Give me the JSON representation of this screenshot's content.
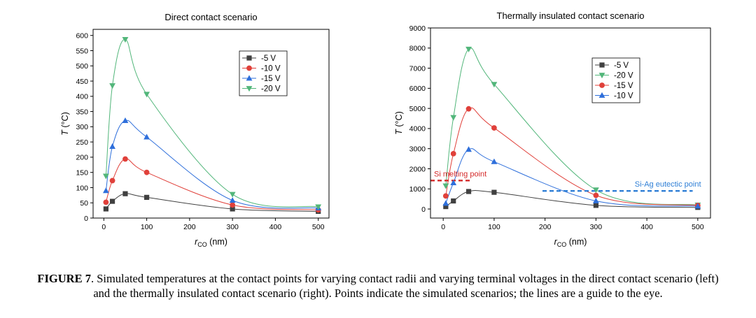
{
  "chart_data": [
    {
      "type": "scatter",
      "title": "Direct contact scenario",
      "xlabel_main": "r",
      "xlabel_sub": "CO",
      "xlabel_unit": "(nm)",
      "ylabel_main": "T",
      "ylabel_unit": "(°C)",
      "xlim": [
        -25,
        525
      ],
      "ylim": [
        0,
        620
      ],
      "xticks": [
        0,
        100,
        200,
        300,
        400,
        500
      ],
      "yticks": [
        0,
        50,
        100,
        150,
        200,
        250,
        300,
        350,
        400,
        450,
        500,
        550,
        600
      ],
      "legend_position": "top-right",
      "x": [
        5,
        20,
        50,
        100,
        300,
        500
      ],
      "series": [
        {
          "name": "-5 V",
          "color": "#404040",
          "marker": "square",
          "values": [
            30,
            55,
            80,
            68,
            30,
            22
          ]
        },
        {
          "name": "-10 V",
          "color": "#e0403a",
          "marker": "circle",
          "values": [
            52,
            123,
            194,
            150,
            43,
            27
          ]
        },
        {
          "name": "-15 V",
          "color": "#2e6fdb",
          "marker": "triangle-up",
          "values": [
            90,
            235,
            320,
            266,
            58,
            33
          ]
        },
        {
          "name": "-20 V",
          "color": "#52b67a",
          "marker": "triangle-down",
          "values": [
            138,
            435,
            587,
            407,
            78,
            37
          ]
        }
      ]
    },
    {
      "type": "scatter",
      "title": "Thermally insulated contact scenario",
      "xlabel_main": "r",
      "xlabel_sub": "CO",
      "xlabel_unit": "(nm)",
      "ylabel_main": "T",
      "ylabel_unit": "(°C)",
      "xlim": [
        -25,
        525
      ],
      "ylim": [
        -450,
        9000
      ],
      "xticks": [
        0,
        100,
        200,
        300,
        400,
        500
      ],
      "yticks": [
        0,
        1000,
        2000,
        3000,
        4000,
        5000,
        6000,
        7000,
        8000,
        9000
      ],
      "legend_position": "top-right",
      "x": [
        5,
        20,
        50,
        100,
        300,
        500
      ],
      "series": [
        {
          "name": "-5 V",
          "color": "#404040",
          "marker": "square",
          "values": [
            120,
            400,
            870,
            830,
            180,
            80
          ]
        },
        {
          "name": "-20 V",
          "color": "#52b67a",
          "marker": "triangle-down",
          "values": [
            1150,
            4550,
            7950,
            6200,
            950,
            200
          ]
        },
        {
          "name": "-15 V",
          "color": "#e0403a",
          "marker": "circle",
          "values": [
            650,
            2750,
            4980,
            4030,
            680,
            180
          ]
        },
        {
          "name": "-10 V",
          "color": "#2e6fdb",
          "marker": "triangle-up",
          "values": [
            280,
            1300,
            2960,
            2350,
            400,
            140
          ]
        }
      ],
      "reference_lines": [
        {
          "label": "Si melting point",
          "value": 1414,
          "x_range": [
            -25,
            55
          ],
          "color": "#d42a2a"
        },
        {
          "label": "Si-Ag eutectic point",
          "value": 900,
          "x_range": [
            195,
            490
          ],
          "color": "#2f7fd6"
        }
      ]
    }
  ],
  "caption": {
    "label": "FIGURE 7",
    "text": ". Simulated temperatures at the contact points for varying contact radii and varying terminal voltages in the direct contact scenario (left) and the thermally insulated contact scenario (right). Points indicate the simulated scenarios; the lines are a guide to the eye."
  }
}
